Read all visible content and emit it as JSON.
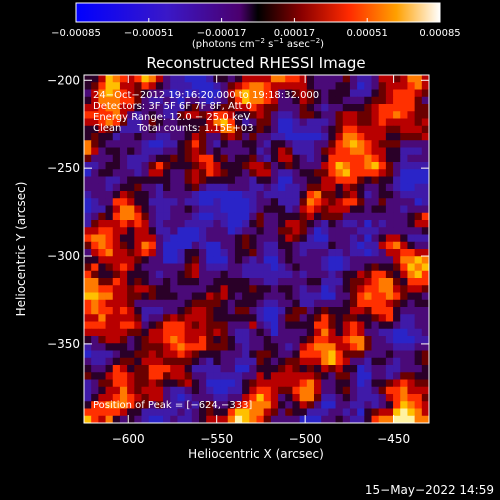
{
  "chart_data": {
    "type": "heatmap",
    "title": "Reconstructed RHESSI Image",
    "xlabel": "Heliocentric X (arcsec)",
    "ylabel": "Heliocentric Y (arcsec)",
    "xlim": [
      -625,
      -430
    ],
    "ylim": [
      -395,
      -197
    ],
    "x_ticks": [
      -600,
      -550,
      -500,
      -450
    ],
    "x_tick_labels": [
      "−600",
      "−550",
      "−500",
      "−450"
    ],
    "y_ticks": [
      -200,
      -250,
      -300,
      -350
    ],
    "y_tick_labels": [
      "−200",
      "−250",
      "−300",
      "−350"
    ],
    "colorbar": {
      "range": [
        -0.00085,
        0.00085
      ],
      "ticks": [
        -0.00085,
        -0.00051,
        -0.00017,
        0.00017,
        0.00051,
        0.00085
      ],
      "tick_labels": [
        "−0.00085",
        "−0.00051",
        "−0.00017",
        "0.00017",
        "0.00051",
        "0.00085"
      ],
      "unit_text": "(photons cm",
      "unit_sup1": "−2",
      "unit_mid": " s",
      "unit_sup2": "−1",
      "unit_mid2": " asec",
      "unit_sup3": "−2",
      "unit_end": ")"
    },
    "info_lines": [
      "24−Oct−2012 19:16:20.000 to 19:18:32.000",
      "Detectors: 3F 5F 6F 7F 8F, Att 0",
      "Energy Range: 12.0 − 25.0 keV",
      "Clean     Total counts: 1.15E+03"
    ],
    "peak_label": "Position of Peak = [−624,−333]",
    "peak": [
      -624,
      -333
    ],
    "grid": false,
    "colors": {
      "background": "#000000",
      "text": "#ffffff"
    }
  },
  "footer": {
    "timestamp": "15−May−2022 14:59"
  }
}
